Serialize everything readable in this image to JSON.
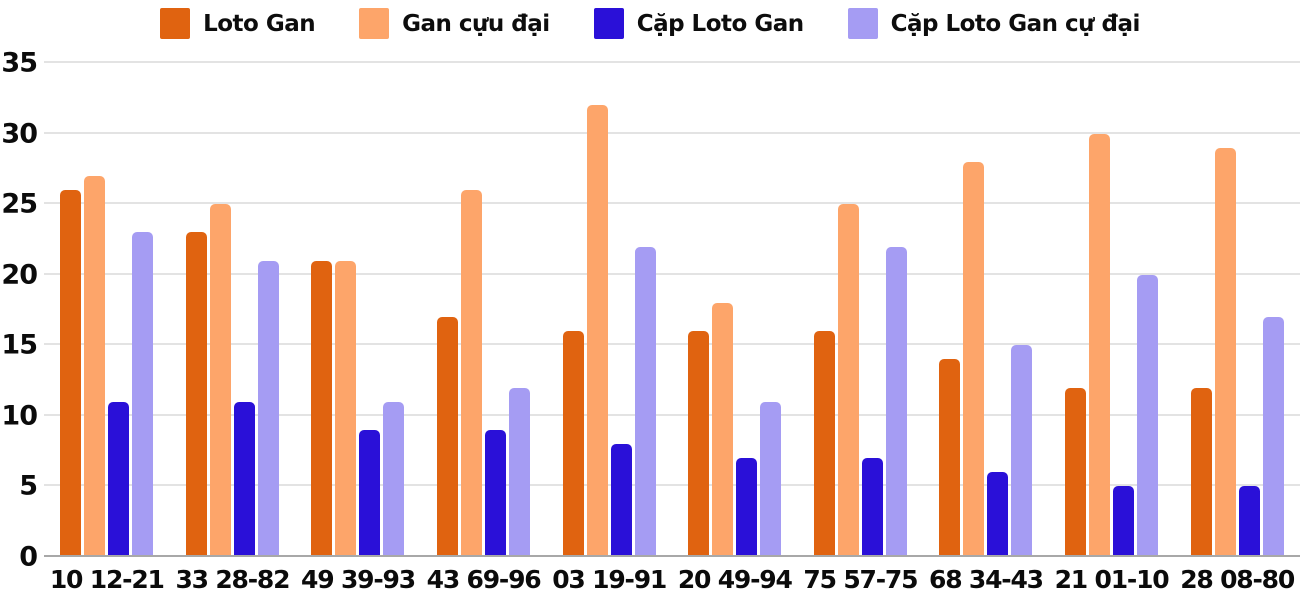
{
  "chart_data": {
    "type": "bar",
    "title": "",
    "xlabel": "",
    "ylabel": "",
    "categories": [
      "10 12-21",
      "33 28-82",
      "49 39-93",
      "43 69-96",
      "03 19-91",
      "20 49-94",
      "75 57-75",
      "68 34-43",
      "21 01-10",
      "28 08-80"
    ],
    "series": [
      {
        "name": "Loto Gan",
        "color": "#e06310",
        "values": [
          26,
          23,
          21,
          17,
          16,
          16,
          16,
          14,
          12,
          12
        ]
      },
      {
        "name": "Gan cựu đại",
        "color": "#fda56a",
        "values": [
          27,
          25,
          21,
          26,
          32,
          18,
          25,
          28,
          30,
          29
        ]
      },
      {
        "name": "Cặp Loto Gan",
        "color": "#2a10d8",
        "values": [
          11,
          11,
          9,
          9,
          8,
          7,
          7,
          6,
          5,
          5
        ]
      },
      {
        "name": "Cặp Loto Gan cự đại",
        "color": "#a59cf3",
        "values": [
          23,
          21,
          11,
          12,
          22,
          11,
          22,
          15,
          20,
          17
        ]
      }
    ],
    "ylim": [
      0,
      35
    ],
    "yticks": [
      0,
      5,
      10,
      15,
      20,
      25,
      30,
      35
    ],
    "grid": true,
    "legend_position": "top",
    "colors": {
      "background": "#ffffff",
      "gridline": "#e3e3e3",
      "baseline": "#a8a8a8",
      "text": "#0b0b0b"
    }
  }
}
